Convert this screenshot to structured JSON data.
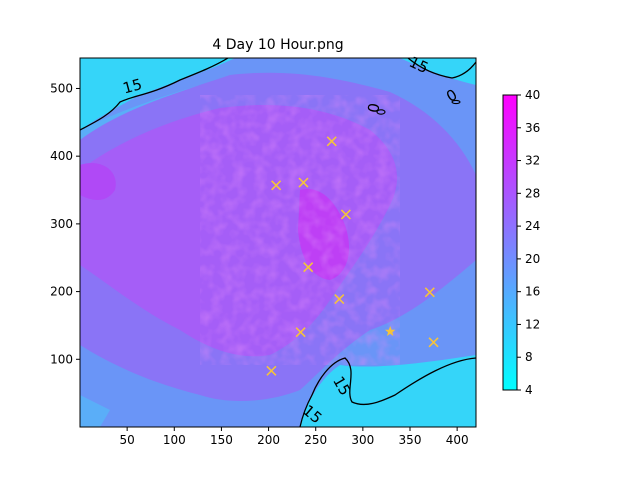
{
  "chart_data": {
    "type": "heatmap",
    "title": "4 Day 10 Hour.png",
    "xlabel": "",
    "ylabel": "",
    "xlim": [
      0,
      420
    ],
    "ylim": [
      0,
      545
    ],
    "xticks": [
      50,
      100,
      150,
      200,
      250,
      300,
      350,
      400
    ],
    "yticks": [
      100,
      200,
      300,
      400,
      500
    ],
    "colorbar": {
      "range": [
        4,
        40
      ],
      "ticks": [
        4,
        8,
        12,
        16,
        20,
        24,
        28,
        32,
        36,
        40
      ],
      "colors": [
        "#00ffff",
        "#ff00ff"
      ],
      "levels": 18
    },
    "contour_labels": [
      {
        "text": "15",
        "x": 57,
        "y": 496,
        "rotate": -15
      },
      {
        "text": "15",
        "x": 357,
        "y": 528,
        "rotate": 25
      },
      {
        "text": "0",
        "x": 317,
        "y": 470,
        "rotate": -80
      },
      {
        "text": "0",
        "x": 397,
        "y": 483,
        "rotate": -30
      },
      {
        "text": "15",
        "x": 273,
        "y": 57,
        "rotate": 60
      },
      {
        "text": "15",
        "x": 243,
        "y": 13,
        "rotate": 40
      }
    ],
    "x_markers": [
      {
        "x": 267,
        "y": 422
      },
      {
        "x": 208,
        "y": 357
      },
      {
        "x": 237,
        "y": 361
      },
      {
        "x": 282,
        "y": 314
      },
      {
        "x": 242,
        "y": 236
      },
      {
        "x": 275,
        "y": 189
      },
      {
        "x": 371,
        "y": 199
      },
      {
        "x": 234,
        "y": 140
      },
      {
        "x": 375,
        "y": 125
      },
      {
        "x": 203,
        "y": 83
      }
    ],
    "star_markers": [
      {
        "x": 329,
        "y": 141
      }
    ],
    "marker_color": "#f5c33b"
  }
}
